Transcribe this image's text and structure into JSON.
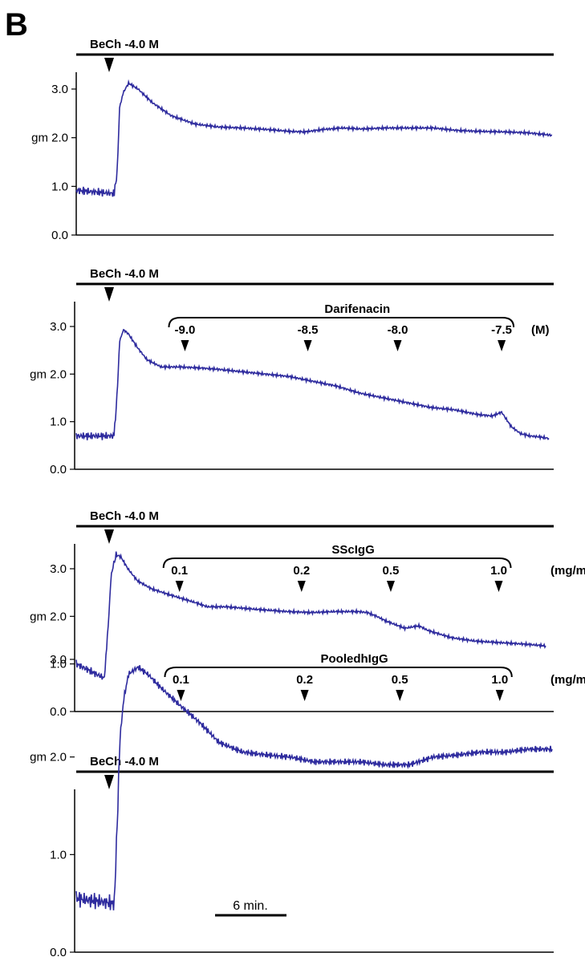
{
  "figure": {
    "panel_letter": "B",
    "ytick_labels": [
      "0.0",
      "1.0",
      "gm 2.0",
      "3.0"
    ],
    "trace_color": "#2e2b9e",
    "scale_bar_label": "6 min."
  },
  "chart_data": [
    {
      "type": "line",
      "stimulus_label": "BeCh -4.0 M",
      "yticks": [
        0.0,
        1.0,
        2.0,
        3.0
      ],
      "ylim": [
        0,
        3.3
      ],
      "xlim": [
        0,
        100
      ],
      "bracket_label": "",
      "unit_label": "",
      "doses": [],
      "series": [
        {
          "x": [
            0,
            8,
            8.6,
            9.1,
            10,
            11,
            13,
            16,
            20,
            25,
            30,
            35,
            40,
            45,
            48,
            52,
            56,
            60,
            65,
            70,
            75,
            80,
            85,
            90,
            95,
            100
          ],
          "values": [
            0.92,
            0.85,
            1.3,
            2.6,
            2.95,
            3.12,
            3.0,
            2.72,
            2.45,
            2.28,
            2.22,
            2.2,
            2.17,
            2.13,
            2.12,
            2.17,
            2.2,
            2.18,
            2.2,
            2.2,
            2.2,
            2.15,
            2.13,
            2.12,
            2.1,
            2.05
          ]
        }
      ]
    },
    {
      "type": "line",
      "stimulus_label": "BeCh -4.0 M",
      "yticks": [
        0.0,
        1.0,
        2.0,
        3.0
      ],
      "ylim": [
        0,
        3.3
      ],
      "xlim": [
        0,
        100
      ],
      "bracket_label": "Darifenacin",
      "unit_label": "(M)",
      "doses": [
        {
          "label": "-9.0",
          "x": 23
        },
        {
          "label": "-8.5",
          "x": 49
        },
        {
          "label": "-8.0",
          "x": 68
        },
        {
          "label": "-7.5",
          "x": 90
        }
      ],
      "series": [
        {
          "x": [
            0,
            8,
            8.6,
            9.2,
            10,
            11,
            13,
            15,
            18,
            22,
            26,
            30,
            35,
            40,
            45,
            50,
            55,
            60,
            65,
            70,
            75,
            80,
            85,
            88,
            90,
            91,
            92,
            94,
            96,
            98,
            100
          ],
          "values": [
            0.7,
            0.7,
            1.5,
            2.7,
            2.93,
            2.85,
            2.55,
            2.3,
            2.15,
            2.15,
            2.13,
            2.1,
            2.05,
            2.0,
            1.95,
            1.85,
            1.75,
            1.6,
            1.5,
            1.4,
            1.3,
            1.25,
            1.15,
            1.12,
            1.2,
            1.05,
            0.9,
            0.75,
            0.7,
            0.68,
            0.65
          ]
        }
      ]
    },
    {
      "type": "line",
      "stimulus_label": "BeCh -4.0 M",
      "yticks": [
        0.0,
        1.0,
        2.0,
        3.0
      ],
      "ylim": [
        0,
        3.3
      ],
      "xlim": [
        0,
        100
      ],
      "bracket_label": "SScIgG",
      "unit_label": "(mg/ml)",
      "doses": [
        {
          "label": "0.1",
          "x": 22
        },
        {
          "label": "0.2",
          "x": 48
        },
        {
          "label": "0.5",
          "x": 67
        },
        {
          "label": "1.0",
          "x": 90
        }
      ],
      "series": [
        {
          "x": [
            0,
            6,
            6.8,
            7.5,
            8.5,
            9.5,
            11,
            13,
            16,
            20,
            25,
            28,
            32,
            38,
            45,
            50,
            55,
            60,
            62,
            64,
            66,
            70,
            73,
            75,
            80,
            85,
            90,
            95,
            100
          ],
          "values": [
            1.0,
            0.7,
            1.8,
            2.9,
            3.3,
            3.25,
            3.0,
            2.75,
            2.58,
            2.45,
            2.3,
            2.2,
            2.2,
            2.15,
            2.1,
            2.08,
            2.1,
            2.1,
            2.08,
            2.0,
            1.9,
            1.75,
            1.8,
            1.7,
            1.55,
            1.48,
            1.45,
            1.42,
            1.38
          ]
        }
      ]
    },
    {
      "type": "line",
      "stimulus_label": "BeCh -4.0 M",
      "yticks": [
        0.0,
        1.0,
        2.0,
        3.0
      ],
      "ylim": [
        0,
        3.3
      ],
      "xlim": [
        0,
        100
      ],
      "bracket_label": "PooledhIgG",
      "unit_label": "(mg/ml)",
      "doses": [
        {
          "label": "0.1",
          "x": 22
        },
        {
          "label": "0.2",
          "x": 48
        },
        {
          "label": "0.5",
          "x": 68
        },
        {
          "label": "1.0",
          "x": 89
        }
      ],
      "series": [
        {
          "x": [
            0,
            8,
            8.6,
            9.2,
            10,
            11,
            13,
            15,
            18,
            22,
            26,
            30,
            35,
            40,
            45,
            50,
            55,
            60,
            65,
            70,
            75,
            80,
            85,
            90,
            95,
            100
          ],
          "values": [
            0.55,
            0.5,
            1.3,
            2.2,
            2.6,
            2.85,
            2.92,
            2.85,
            2.7,
            2.52,
            2.35,
            2.15,
            2.05,
            2.02,
            2.0,
            1.95,
            1.95,
            1.95,
            1.92,
            1.92,
            2.0,
            2.02,
            2.05,
            2.05,
            2.08,
            2.08
          ]
        }
      ]
    }
  ]
}
